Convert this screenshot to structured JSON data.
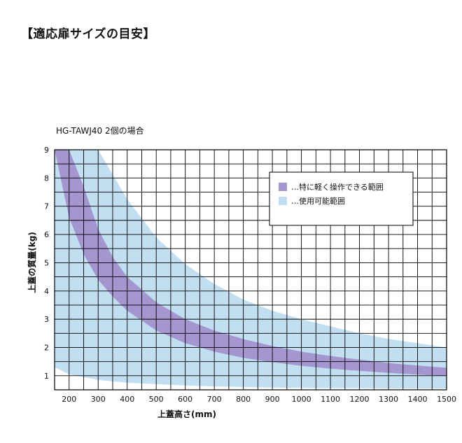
{
  "page": {
    "title": "【適応扉サイズの目安】"
  },
  "chart_data": {
    "type": "area",
    "title": "HG-TAWJ40 2個の場合",
    "xlabel": "上蓋高さ(mm)",
    "ylabel": "上蓋の質量(kg)",
    "xlim": [
      150,
      1500
    ],
    "ylim": [
      0.5,
      9
    ],
    "x_ticks": [
      200,
      300,
      400,
      500,
      600,
      700,
      800,
      900,
      1000,
      1100,
      1200,
      1300,
      1400,
      1500
    ],
    "y_ticks": [
      1,
      2,
      3,
      4,
      5,
      6,
      7,
      8,
      9
    ],
    "grid": true,
    "legend_position": "top-right",
    "series": [
      {
        "name": "使用可能範囲",
        "marker": "…",
        "color": "#c2dff2",
        "x": [
          150,
          200,
          300,
          400,
          500,
          600,
          700,
          800,
          900,
          1000,
          1100,
          1200,
          1300,
          1400,
          1500
        ],
        "upper": [
          9.0,
          9.0,
          9.0,
          7.25,
          5.9,
          4.95,
          4.25,
          3.7,
          3.3,
          3.0,
          2.75,
          2.5,
          2.3,
          2.15,
          2.0
        ],
        "lower": [
          1.3,
          1.05,
          0.85,
          0.75,
          0.7,
          0.65,
          0.62,
          0.6,
          0.58,
          0.57,
          0.56,
          0.56,
          0.55,
          0.55,
          0.55
        ]
      },
      {
        "name": "特に軽く操作できる範囲",
        "marker": "…",
        "color": "#a496cf",
        "x": [
          150,
          200,
          250,
          300,
          350,
          400,
          500,
          600,
          700,
          800,
          900,
          1000,
          1100,
          1200,
          1300,
          1400,
          1500
        ],
        "upper": [
          9.0,
          9.0,
          7.7,
          6.2,
          5.2,
          4.5,
          3.6,
          3.0,
          2.6,
          2.3,
          2.05,
          1.85,
          1.7,
          1.57,
          1.45,
          1.36,
          1.28
        ],
        "lower": [
          9.0,
          6.6,
          5.3,
          4.4,
          3.8,
          3.3,
          2.6,
          2.15,
          1.85,
          1.63,
          1.48,
          1.35,
          1.25,
          1.17,
          1.1,
          1.04,
          0.99
        ]
      }
    ]
  }
}
